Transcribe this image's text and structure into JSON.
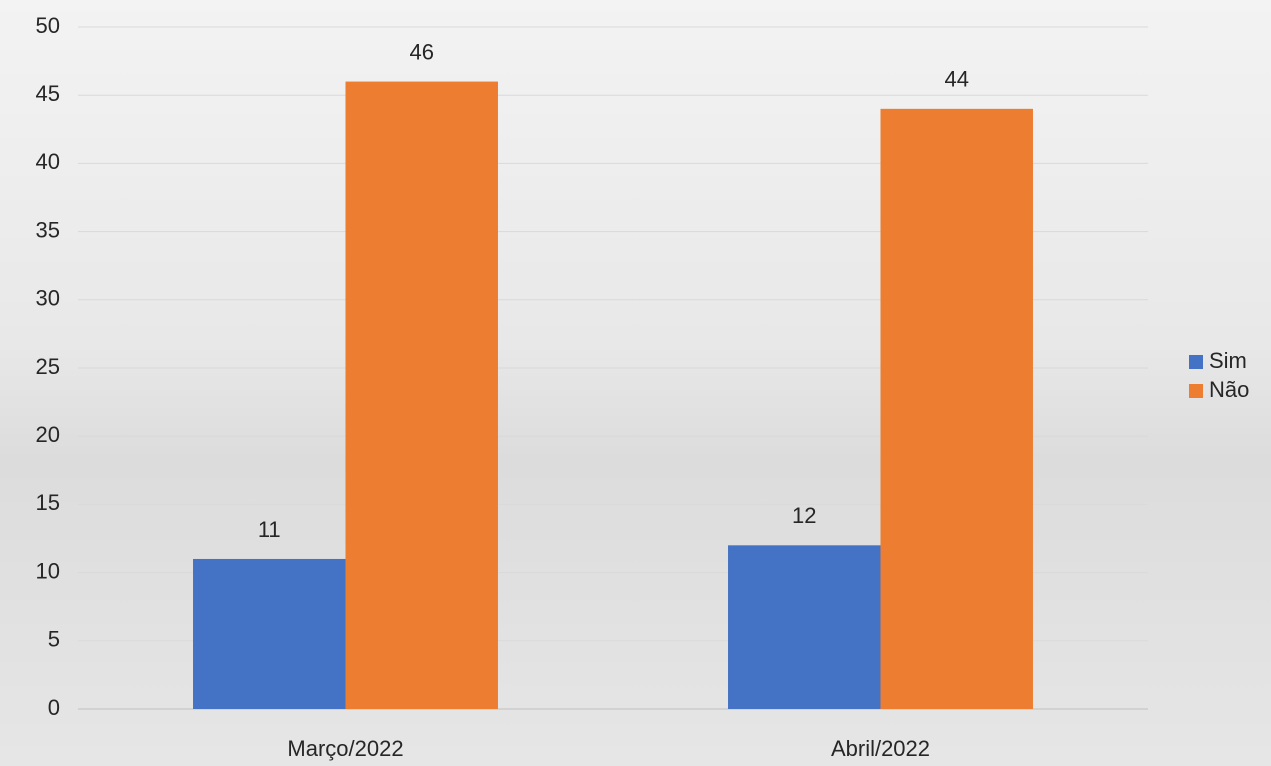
{
  "chart_data": {
    "type": "bar",
    "categories": [
      "Março/2022",
      "Abril/2022"
    ],
    "series": [
      {
        "name": "Sim",
        "color": "#4472c4",
        "values": [
          11,
          12
        ]
      },
      {
        "name": "Não",
        "color": "#ed7d31",
        "values": [
          46,
          44
        ]
      }
    ],
    "ylim": [
      0,
      50
    ],
    "yticks": [
      0,
      5,
      10,
      15,
      20,
      25,
      30,
      35,
      40,
      45,
      50
    ],
    "grid": true,
    "legend": "right",
    "data_labels": true
  }
}
